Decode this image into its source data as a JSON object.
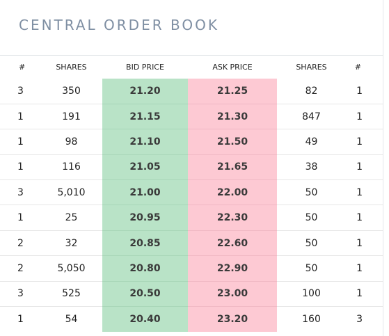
{
  "title": "CENTRAL ORDER BOOK",
  "colors": {
    "bid": "#b9e3c7",
    "ask": "#fdc9d3",
    "title": "#7f8fa3"
  },
  "headers": [
    "#",
    "SHARES",
    "BID PRICE",
    "ASK PRICE",
    "SHARES",
    "#"
  ],
  "rows": [
    {
      "bid_count": "3",
      "bid_shares": "350",
      "bid_price": "21.20",
      "ask_price": "21.25",
      "ask_shares": "82",
      "ask_count": "1"
    },
    {
      "bid_count": "1",
      "bid_shares": "191",
      "bid_price": "21.15",
      "ask_price": "21.30",
      "ask_shares": "847",
      "ask_count": "1"
    },
    {
      "bid_count": "1",
      "bid_shares": "98",
      "bid_price": "21.10",
      "ask_price": "21.50",
      "ask_shares": "49",
      "ask_count": "1"
    },
    {
      "bid_count": "1",
      "bid_shares": "116",
      "bid_price": "21.05",
      "ask_price": "21.65",
      "ask_shares": "38",
      "ask_count": "1"
    },
    {
      "bid_count": "3",
      "bid_shares": "5,010",
      "bid_price": "21.00",
      "ask_price": "22.00",
      "ask_shares": "50",
      "ask_count": "1"
    },
    {
      "bid_count": "1",
      "bid_shares": "25",
      "bid_price": "20.95",
      "ask_price": "22.30",
      "ask_shares": "50",
      "ask_count": "1"
    },
    {
      "bid_count": "2",
      "bid_shares": "32",
      "bid_price": "20.85",
      "ask_price": "22.60",
      "ask_shares": "50",
      "ask_count": "1"
    },
    {
      "bid_count": "2",
      "bid_shares": "5,050",
      "bid_price": "20.80",
      "ask_price": "22.90",
      "ask_shares": "50",
      "ask_count": "1"
    },
    {
      "bid_count": "3",
      "bid_shares": "525",
      "bid_price": "20.50",
      "ask_price": "23.00",
      "ask_shares": "100",
      "ask_count": "1"
    },
    {
      "bid_count": "1",
      "bid_shares": "54",
      "bid_price": "20.40",
      "ask_price": "23.20",
      "ask_shares": "160",
      "ask_count": "3"
    }
  ]
}
